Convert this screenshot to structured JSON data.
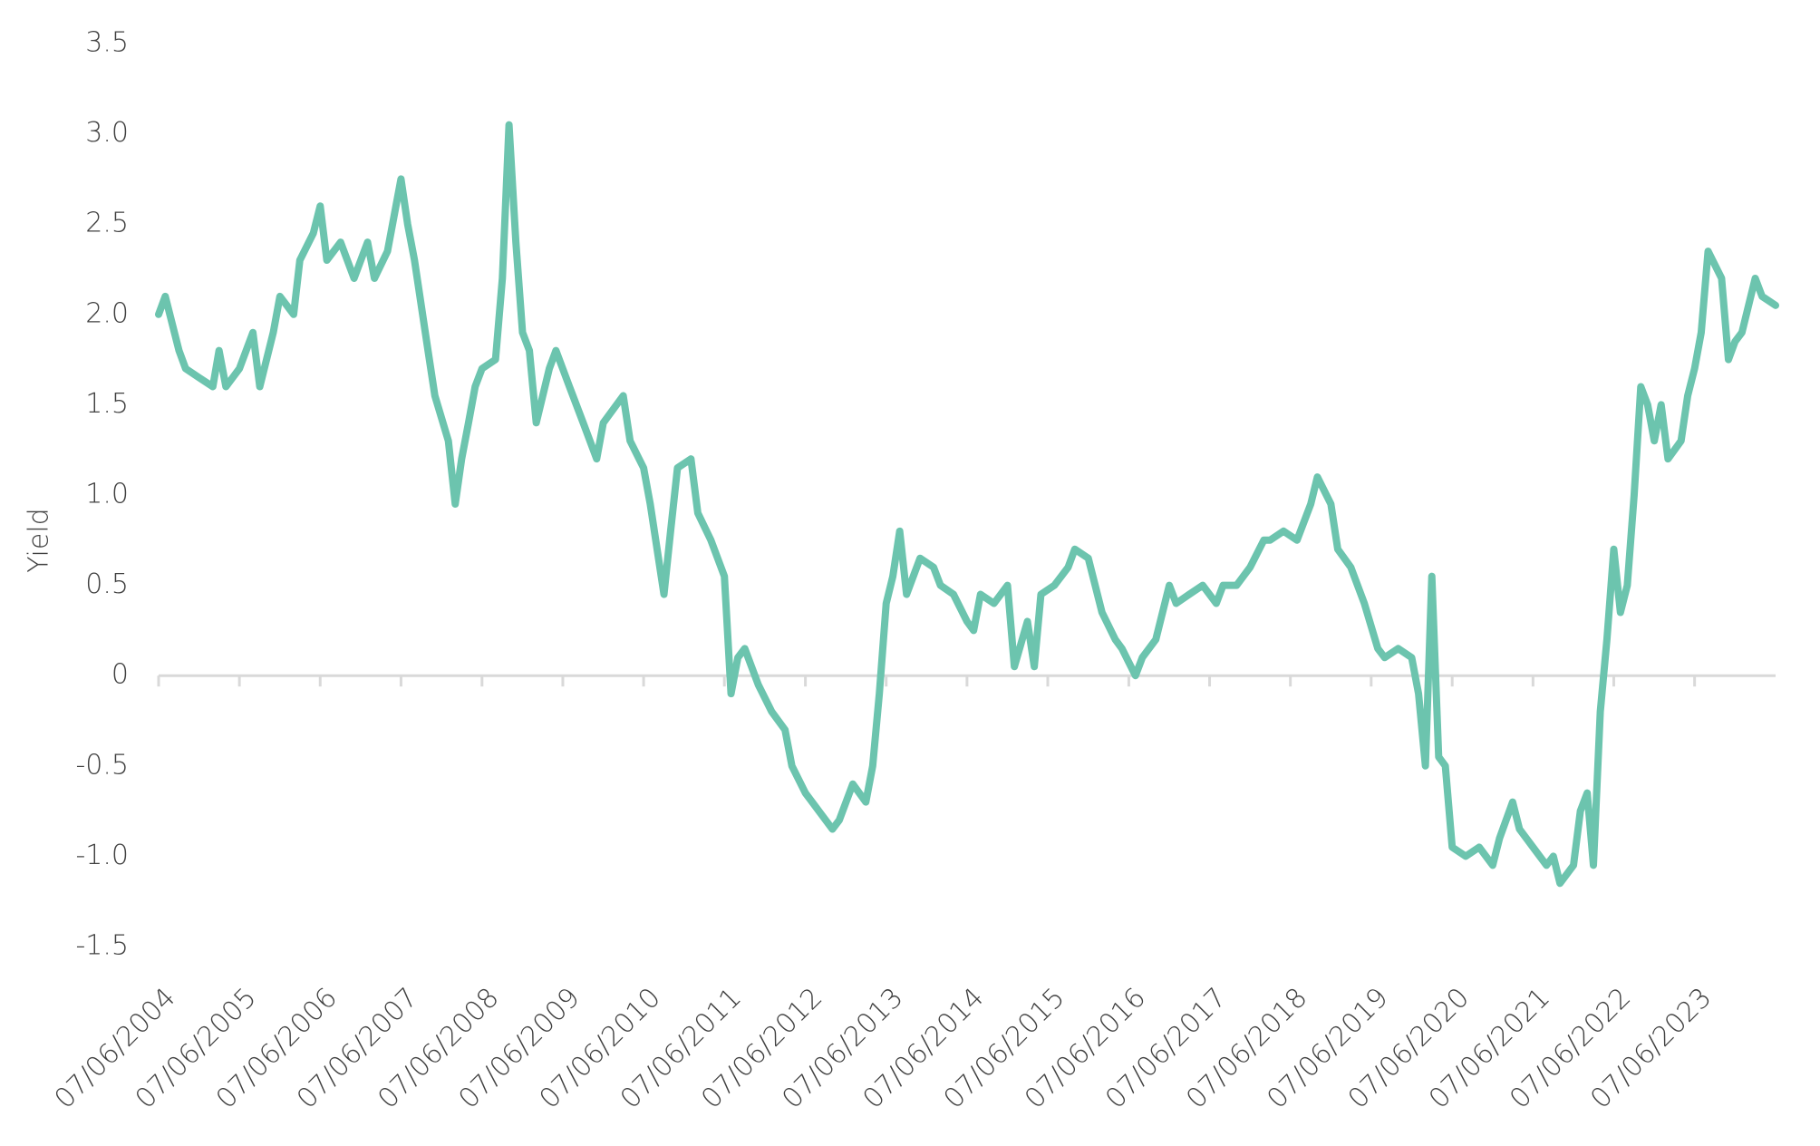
{
  "chart_data": {
    "type": "line",
    "y_label": "Yield",
    "ylim": [
      -1.5,
      3.5
    ],
    "yticks": [
      -1.5,
      {
        "value": -1,
        "label": "-1.0"
      },
      -0.5,
      0,
      0.5,
      {
        "value": 1,
        "label": "1.0"
      },
      1.5,
      {
        "value": 2,
        "label": "2.0"
      },
      2.5,
      {
        "value": 3,
        "label": "3.0"
      },
      3.5
    ],
    "xlim": [
      "07/06/2004",
      "07/06/2024"
    ],
    "xticks": [
      "07/06/2004",
      "07/06/2005",
      "07/06/2006",
      "07/06/2007",
      "07/06/2008",
      "07/06/2009",
      "07/06/2010",
      "07/06/2011",
      "07/06/2012",
      "07/06/2013",
      "07/06/2014",
      "07/06/2015",
      "07/06/2016",
      "07/06/2017",
      "07/06/2018",
      "07/06/2019",
      "07/06/2020",
      "07/06/2021",
      "07/06/2022",
      "07/06/2023"
    ],
    "x": [
      "07/06/2004",
      "07/07/2004",
      "07/09/2004",
      "07/10/2004",
      "07/12/2004",
      "07/02/2005",
      "07/03/2005",
      "07/04/2005",
      "07/06/2005",
      "07/08/2005",
      "07/09/2005",
      "07/11/2005",
      "07/12/2005",
      "07/02/2006",
      "07/03/2006",
      "07/05/2006",
      "07/06/2006",
      "07/07/2006",
      "07/09/2006",
      "07/11/2006",
      "07/01/2007",
      "07/02/2007",
      "07/04/2007",
      "07/06/2007",
      "07/07/2007",
      "07/08/2007",
      "07/10/2007",
      "07/11/2007",
      "07/01/2008",
      "07/02/2008",
      "07/03/2008",
      "07/04/2008",
      "07/05/2008",
      "07/06/2008",
      "07/08/2008",
      "07/09/2008",
      "07/10/2008",
      "07/11/2008",
      "07/12/2008",
      "07/01/2009",
      "07/02/2009",
      "07/04/2009",
      "07/05/2009",
      "07/07/2009",
      "07/09/2009",
      "07/11/2009",
      "07/12/2009",
      "07/03/2010",
      "07/04/2010",
      "07/06/2010",
      "07/07/2010",
      "07/09/2010",
      "07/10/2010",
      "07/11/2010",
      "07/01/2011",
      "07/02/2011",
      "07/04/2011",
      "07/06/2011",
      "07/07/2011",
      "07/08/2011",
      "07/09/2011",
      "07/11/2011",
      "07/01/2012",
      "07/03/2012",
      "07/04/2012",
      "07/06/2012",
      "07/08/2012",
      "07/10/2012",
      "07/11/2012",
      "07/01/2013",
      "07/03/2013",
      "07/04/2013",
      "07/05/2013",
      "07/06/2013",
      "07/07/2013",
      "07/08/2013",
      "07/09/2013",
      "07/11/2013",
      "07/01/2014",
      "07/02/2014",
      "07/04/2014",
      "07/06/2014",
      "07/07/2014",
      "07/08/2014",
      "07/10/2014",
      "07/12/2014",
      "07/01/2015",
      "07/03/2015",
      "07/04/2015",
      "07/05/2015",
      "07/07/2015",
      "07/09/2015",
      "07/10/2015",
      "07/12/2015",
      "07/02/2016",
      "07/04/2016",
      "07/05/2016",
      "07/07/2016",
      "07/08/2016",
      "07/10/2016",
      "07/12/2016",
      "07/01/2017",
      "07/03/2017",
      "07/05/2017",
      "07/07/2017",
      "07/08/2017",
      "07/10/2017",
      "07/12/2017",
      "07/02/2018",
      "07/03/2018",
      "07/05/2018",
      "07/07/2018",
      "07/09/2018",
      "07/10/2018",
      "07/12/2018",
      "07/01/2019",
      "07/03/2019",
      "07/05/2019",
      "07/07/2019",
      "07/08/2019",
      "07/10/2019",
      "07/12/2019",
      "07/01/2020",
      "07/02/2020",
      "07/03/2020",
      "07/04/2020",
      "07/05/2020",
      "07/06/2020",
      "07/08/2020",
      "07/10/2020",
      "07/12/2020",
      "07/01/2021",
      "07/03/2021",
      "07/04/2021",
      "07/06/2021",
      "07/08/2021",
      "07/09/2021",
      "07/10/2021",
      "07/12/2021",
      "07/01/2022",
      "07/02/2022",
      "07/03/2022",
      "07/04/2022",
      "07/05/2022",
      "07/06/2022",
      "07/07/2022",
      "07/08/2022",
      "07/09/2022",
      "07/10/2022",
      "07/11/2022",
      "07/12/2022",
      "07/01/2023",
      "07/02/2023",
      "07/04/2023",
      "07/05/2023",
      "07/06/2023",
      "07/07/2023",
      "07/08/2023",
      "07/10/2023",
      "07/11/2023",
      "07/12/2023",
      "07/01/2024",
      "07/03/2024",
      "07/04/2024",
      "07/06/2024"
    ],
    "series": [
      {
        "name": "Yield",
        "color": "#6cc4ae",
        "values": [
          2.0,
          2.1,
          1.8,
          1.7,
          1.65,
          1.6,
          1.8,
          1.6,
          1.7,
          1.9,
          1.6,
          1.9,
          2.1,
          2.0,
          2.3,
          2.45,
          2.6,
          2.3,
          2.4,
          2.2,
          2.4,
          2.2,
          2.35,
          2.75,
          2.5,
          2.3,
          1.8,
          1.55,
          1.3,
          0.95,
          1.2,
          1.4,
          1.6,
          1.7,
          1.75,
          2.2,
          3.05,
          2.4,
          1.9,
          1.8,
          1.4,
          1.7,
          1.8,
          1.6,
          1.4,
          1.2,
          1.4,
          1.55,
          1.3,
          1.15,
          0.95,
          0.45,
          0.8,
          1.15,
          1.2,
          0.9,
          0.75,
          0.55,
          -0.1,
          0.1,
          0.15,
          -0.05,
          -0.2,
          -0.3,
          -0.5,
          -0.65,
          -0.75,
          -0.85,
          -0.8,
          -0.6,
          -0.7,
          -0.5,
          -0.1,
          0.4,
          0.55,
          0.8,
          0.45,
          0.65,
          0.6,
          0.5,
          0.45,
          0.3,
          0.25,
          0.45,
          0.4,
          0.5,
          0.05,
          0.3,
          0.05,
          0.45,
          0.5,
          0.6,
          0.7,
          0.65,
          0.35,
          0.2,
          0.15,
          0.0,
          0.1,
          0.2,
          0.5,
          0.4,
          0.45,
          0.5,
          0.4,
          0.5,
          0.5,
          0.6,
          0.75,
          0.75,
          0.8,
          0.75,
          0.95,
          1.1,
          0.95,
          0.7,
          0.6,
          0.4,
          0.15,
          0.1,
          0.15,
          0.1,
          -0.1,
          -0.5,
          0.55,
          -0.45,
          -0.5,
          -0.95,
          -1.0,
          -0.95,
          -1.05,
          -0.9,
          -0.7,
          -0.85,
          -0.95,
          -1.05,
          -1.0,
          -1.15,
          -1.05,
          -0.75,
          -0.65,
          -1.05,
          -0.2,
          0.2,
          0.7,
          0.35,
          0.5,
          1.0,
          1.6,
          1.5,
          1.3,
          1.5,
          1.2,
          1.3,
          1.55,
          1.7,
          1.9,
          2.35,
          2.2,
          1.75,
          1.85,
          1.9,
          2.2,
          2.1,
          2.05
        ]
      }
    ]
  }
}
